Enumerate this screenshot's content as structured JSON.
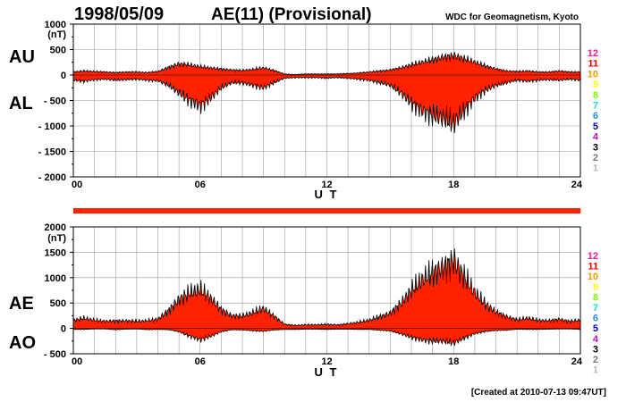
{
  "header": {
    "date": "1998/05/09",
    "title": "AE(11) (Provisional)",
    "source": "WDC for Geomagnetism, Kyoto",
    "created": "[Created at 2010-07-13 09:47UT]"
  },
  "colors": {
    "fill": "#ff2200",
    "line": "#000000",
    "grid": "#999999"
  },
  "station_legend": [
    {
      "label": "12",
      "color": "#ff1493"
    },
    {
      "label": "11",
      "color": "#ff0000"
    },
    {
      "label": "10",
      "color": "#ff9900"
    },
    {
      "label": "9",
      "color": "#ffff00"
    },
    {
      "label": "8",
      "color": "#7cfc00"
    },
    {
      "label": "7",
      "color": "#00e5ee"
    },
    {
      "label": "6",
      "color": "#1e90ff"
    },
    {
      "label": "5",
      "color": "#0000cd"
    },
    {
      "label": "4",
      "color": "#cc00cc"
    },
    {
      "label": "3",
      "color": "#000000"
    },
    {
      "label": "2",
      "color": "#777777"
    },
    {
      "label": "1",
      "color": "#bbbbbb"
    }
  ],
  "chart_data": [
    {
      "type": "area",
      "ylabel_units": "(nT)",
      "series_labels": [
        "AU",
        "AL"
      ],
      "xlabel": "U T",
      "x_tick_labels": [
        "00",
        "06",
        "12",
        "18",
        "24"
      ],
      "y_tick_labels": [
        "1000",
        "500",
        "0",
        "- 500",
        "- 1000",
        "- 1500",
        "- 2000"
      ],
      "xlim": [
        0,
        24
      ],
      "ylim": [
        -2000,
        1000
      ],
      "grid": true,
      "x": [
        0,
        0.5,
        1,
        1.5,
        2,
        2.5,
        3,
        3.5,
        4,
        4.5,
        5,
        5.5,
        6,
        6.5,
        7,
        7.5,
        8,
        8.5,
        9,
        9.5,
        10,
        10.5,
        11,
        11.5,
        12,
        12.5,
        13,
        13.5,
        14,
        14.5,
        15,
        15.5,
        16,
        16.5,
        17,
        17.5,
        18,
        18.5,
        19,
        19.5,
        20,
        20.5,
        21,
        21.5,
        22,
        22.5,
        23,
        23.5,
        24
      ],
      "upper_name": "AU",
      "upper": [
        60,
        80,
        70,
        60,
        50,
        60,
        60,
        50,
        70,
        150,
        220,
        200,
        160,
        140,
        120,
        100,
        90,
        110,
        140,
        90,
        20,
        10,
        20,
        20,
        20,
        20,
        30,
        40,
        60,
        80,
        100,
        140,
        200,
        250,
        300,
        350,
        380,
        320,
        250,
        180,
        120,
        80,
        70,
        80,
        60,
        60,
        80,
        60,
        60
      ],
      "lower_name": "AL",
      "lower": [
        -100,
        -120,
        -90,
        -80,
        -100,
        -90,
        -80,
        -100,
        -110,
        -200,
        -350,
        -500,
        -600,
        -450,
        -250,
        -150,
        -150,
        -200,
        -250,
        -150,
        -60,
        -50,
        -50,
        -50,
        -60,
        -50,
        -60,
        -80,
        -100,
        -150,
        -200,
        -350,
        -550,
        -700,
        -800,
        -850,
        -950,
        -700,
        -450,
        -300,
        -200,
        -150,
        -100,
        -120,
        -100,
        -90,
        -100,
        -80,
        -100
      ]
    },
    {
      "type": "area",
      "ylabel_units": "(nT)",
      "series_labels": [
        "AE",
        "AO"
      ],
      "xlabel": "U T",
      "x_tick_labels": [
        "00",
        "06",
        "12",
        "18",
        "24"
      ],
      "y_tick_labels": [
        "2000",
        "1500",
        "1000",
        "500",
        "0",
        "- 500"
      ],
      "xlim": [
        0,
        24
      ],
      "ylim": [
        -500,
        2000
      ],
      "grid": true,
      "x": [
        0,
        0.5,
        1,
        1.5,
        2,
        2.5,
        3,
        3.5,
        4,
        4.5,
        5,
        5.5,
        6,
        6.5,
        7,
        7.5,
        8,
        8.5,
        9,
        9.5,
        10,
        10.5,
        11,
        11.5,
        12,
        12.5,
        13,
        13.5,
        14,
        14.5,
        15,
        15.5,
        16,
        16.5,
        17,
        17.5,
        18,
        18.5,
        19,
        19.5,
        20,
        20.5,
        21,
        21.5,
        22,
        22.5,
        23,
        23.5,
        24
      ],
      "upper_name": "AE",
      "upper": [
        160,
        200,
        160,
        140,
        150,
        150,
        140,
        150,
        180,
        350,
        570,
        700,
        760,
        590,
        370,
        250,
        240,
        310,
        390,
        240,
        80,
        60,
        70,
        70,
        80,
        70,
        90,
        120,
        160,
        230,
        300,
        490,
        750,
        950,
        1100,
        1200,
        1330,
        1020,
        700,
        480,
        320,
        230,
        170,
        200,
        160,
        150,
        180,
        140,
        160
      ],
      "lower_name": "AO",
      "lower": [
        -20,
        -20,
        -10,
        -10,
        -25,
        -15,
        -10,
        -25,
        -20,
        -25,
        -65,
        -150,
        -220,
        -155,
        -65,
        -25,
        -30,
        -45,
        -55,
        -30,
        -20,
        -20,
        -15,
        -15,
        -20,
        -15,
        -15,
        -20,
        -20,
        -35,
        -50,
        -105,
        -175,
        -225,
        -250,
        -250,
        -285,
        -190,
        -100,
        -60,
        -40,
        -35,
        -15,
        -20,
        -20,
        -15,
        -10,
        -10,
        -20
      ]
    }
  ]
}
